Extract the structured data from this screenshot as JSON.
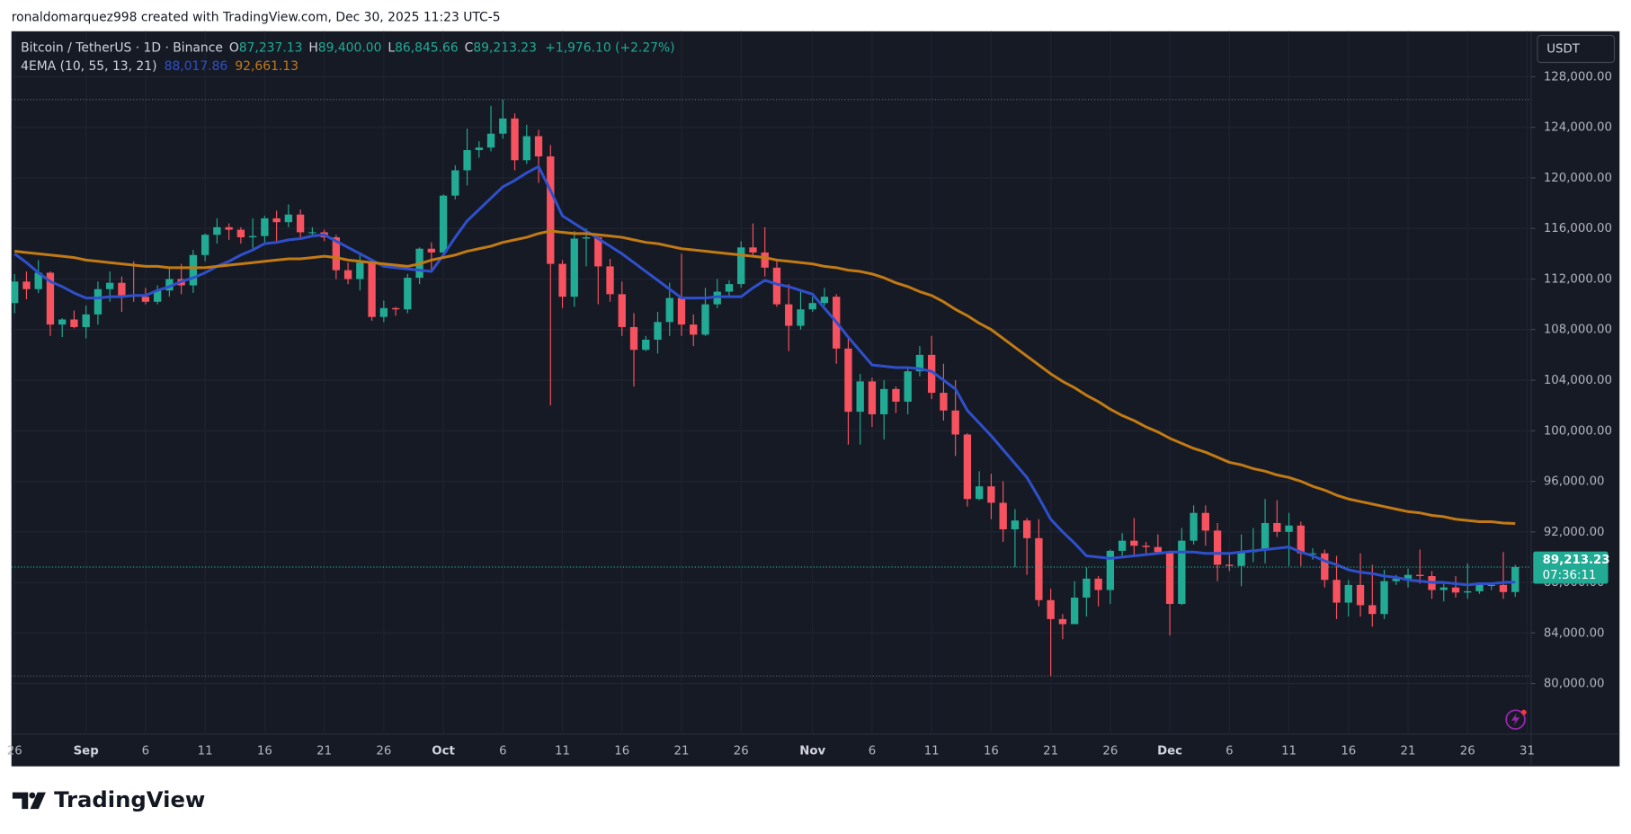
{
  "attribution": "ronaldomarquez998 created with TradingView.com, Dec 30, 2025 11:23 UTC-5",
  "brand": "TradingView",
  "chart_data": {
    "type": "candlestick",
    "symbol": "Bitcoin / TetherUS · 1D · Binance",
    "ohlc_letters": [
      "O",
      "H",
      "L",
      "C"
    ],
    "ohlc_labels": [
      "87,237.13",
      "89,400.00",
      "86,845.66",
      "89,213.23"
    ],
    "change_label": "+1,976.10 (+2.27%)",
    "indicator": "4EMA (10, 55, 13, 21)",
    "currency": "USDT",
    "countdown": "07:36:11",
    "up_color": "#22ab94",
    "down_color": "#f7525f",
    "grid": true,
    "categories": [
      "26",
      null,
      null,
      null,
      null,
      null,
      "Sep",
      null,
      null,
      null,
      null,
      "6",
      null,
      null,
      null,
      null,
      "11",
      null,
      null,
      null,
      null,
      "16",
      null,
      null,
      null,
      null,
      "21",
      null,
      null,
      null,
      null,
      "26",
      null,
      null,
      null,
      null,
      "Oct",
      null,
      null,
      null,
      null,
      "6",
      null,
      null,
      null,
      null,
      "11",
      null,
      null,
      null,
      null,
      "16",
      null,
      null,
      null,
      null,
      "21",
      null,
      null,
      null,
      null,
      "26",
      null,
      null,
      null,
      null,
      null,
      "Nov",
      null,
      null,
      null,
      null,
      "6",
      null,
      null,
      null,
      null,
      "11",
      null,
      null,
      null,
      null,
      "16",
      null,
      null,
      null,
      null,
      "21",
      null,
      null,
      null,
      null,
      "26",
      null,
      null,
      null,
      null,
      "Dec",
      null,
      null,
      null,
      null,
      "6",
      null,
      null,
      null,
      null,
      "11",
      null,
      null,
      null,
      null,
      "16",
      null,
      null,
      null,
      null,
      "21",
      null,
      null,
      null,
      null,
      "26",
      null,
      null,
      null,
      null,
      "31"
    ],
    "open": [
      110100,
      111800,
      111200,
      112500,
      108400,
      108800,
      108200,
      109200,
      111200,
      111700,
      110700,
      110600,
      110200,
      111100,
      112000,
      111500,
      113900,
      115500,
      116100,
      115900,
      115300,
      115400,
      116800,
      116500,
      117100,
      115700,
      115700,
      115300,
      112700,
      112000,
      113300,
      109000,
      109700,
      109600,
      112100,
      114400,
      114100,
      118600,
      120600,
      122200,
      122400,
      123500,
      124700,
      121400,
      123300,
      121700,
      113200,
      110600,
      115200,
      115300,
      113000,
      110800,
      108200,
      106400,
      107200,
      108600,
      110500,
      108400,
      107600,
      110000,
      111000,
      111600,
      114500,
      114100,
      112900,
      110000,
      108300,
      109600,
      110100,
      110600,
      106500,
      101500,
      103900,
      101300,
      103300,
      102300,
      104700,
      106000,
      103000,
      101600,
      99700,
      94600,
      95600,
      94300,
      92200,
      92900,
      91500,
      86600,
      85100,
      84700,
      86800,
      88300,
      87400,
      90500,
      91300,
      90900,
      90800,
      90400,
      86300,
      91300,
      93500,
      92100,
      89400,
      89300,
      90400,
      90600,
      92700,
      92000,
      92500,
      90300,
      90300,
      88200,
      86400,
      87800,
      86200,
      85500,
      88100,
      88300,
      88600,
      88500,
      87400,
      87600,
      87200,
      87300,
      87800,
      87800,
      87237.13,
      null
    ],
    "high": [
      112400,
      112600,
      113500,
      112600,
      108900,
      109500,
      109900,
      111800,
      112600,
      112200,
      113400,
      111300,
      111500,
      112900,
      113200,
      114300,
      115600,
      116800,
      116400,
      116100,
      116800,
      117000,
      117400,
      117900,
      117500,
      116100,
      115900,
      115500,
      113300,
      113900,
      113500,
      110300,
      109800,
      112400,
      114500,
      114900,
      118700,
      121000,
      123900,
      122900,
      125700,
      126200,
      125100,
      124200,
      123800,
      122600,
      113500,
      115800,
      116000,
      115400,
      113600,
      111800,
      109300,
      107500,
      109400,
      111700,
      114000,
      109200,
      111300,
      112000,
      111900,
      115000,
      116400,
      116100,
      113600,
      111600,
      111200,
      110600,
      111300,
      110800,
      107300,
      104500,
      104200,
      104000,
      103500,
      105000,
      106700,
      107500,
      105300,
      104000,
      99800,
      96800,
      96600,
      96000,
      93800,
      93100,
      93000,
      87500,
      85500,
      88100,
      89200,
      88500,
      90600,
      91900,
      93100,
      91200,
      91800,
      90400,
      92300,
      94100,
      94100,
      92700,
      90300,
      91800,
      92300,
      94600,
      94500,
      93500,
      92800,
      90700,
      90600,
      90100,
      88200,
      90300,
      89400,
      89000,
      88600,
      89100,
      90600,
      88900,
      87900,
      88500,
      89500,
      88000,
      88000,
      90400,
      89400,
      null
    ],
    "low": [
      109300,
      110400,
      110900,
      107500,
      107400,
      108100,
      107300,
      108400,
      110200,
      109400,
      110200,
      110000,
      110000,
      110600,
      110800,
      110900,
      113400,
      114800,
      115100,
      114800,
      114400,
      114900,
      114800,
      116100,
      115200,
      115400,
      115000,
      112000,
      111600,
      111100,
      108700,
      108600,
      109100,
      109300,
      111600,
      112700,
      113900,
      118300,
      119400,
      121600,
      122100,
      123100,
      120600,
      121100,
      119600,
      102000,
      109700,
      109800,
      113000,
      110000,
      110200,
      107500,
      103500,
      106300,
      106100,
      107500,
      107500,
      106700,
      107500,
      109700,
      110600,
      111300,
      113900,
      112200,
      109800,
      106300,
      108000,
      109400,
      109900,
      105300,
      98900,
      98900,
      100300,
      99300,
      101400,
      101300,
      104300,
      102500,
      100800,
      98000,
      94000,
      94500,
      93000,
      91200,
      89200,
      88600,
      86100,
      80600,
      83500,
      84700,
      85300,
      86100,
      86300,
      90100,
      90200,
      90300,
      90300,
      83800,
      86200,
      91000,
      90900,
      88100,
      88900,
      87700,
      89600,
      89500,
      91600,
      89300,
      89300,
      89800,
      87600,
      85100,
      85300,
      85300,
      84500,
      85100,
      87800,
      87600,
      87900,
      86700,
      86500,
      86800,
      86700,
      87100,
      87400,
      86700,
      86845.66,
      null
    ],
    "close": [
      111800,
      111200,
      112500,
      108400,
      108800,
      108200,
      109200,
      111200,
      111700,
      110700,
      110600,
      110200,
      111100,
      112000,
      111500,
      113900,
      115500,
      116100,
      115900,
      115300,
      115400,
      116800,
      116500,
      117100,
      115700,
      115700,
      115300,
      112700,
      112000,
      113300,
      109000,
      109700,
      109600,
      112100,
      114400,
      114100,
      118600,
      120600,
      122200,
      122400,
      123500,
      124700,
      121400,
      123300,
      121700,
      113200,
      110600,
      115200,
      115300,
      113000,
      110800,
      108200,
      106400,
      107200,
      108600,
      110500,
      108400,
      107600,
      110000,
      111000,
      111600,
      114500,
      114100,
      112900,
      110000,
      108300,
      109600,
      110100,
      110600,
      106500,
      101500,
      103900,
      101300,
      103300,
      102300,
      104700,
      106000,
      103000,
      101600,
      99700,
      94600,
      95600,
      94300,
      92200,
      92900,
      91500,
      86600,
      85100,
      84700,
      86800,
      88300,
      87400,
      90500,
      91300,
      90900,
      90800,
      90400,
      86300,
      91300,
      93500,
      92100,
      89400,
      89300,
      90400,
      90600,
      92700,
      92000,
      92500,
      90300,
      90300,
      88200,
      86400,
      87800,
      86200,
      85500,
      88100,
      88300,
      88600,
      88500,
      87400,
      87600,
      87200,
      87300,
      87800,
      87800,
      87237.13,
      89213.23,
      null
    ],
    "series": [
      {
        "color": "#2f50cc",
        "last_label": "88,017.86",
        "values": [
          114000,
          113300,
          112500,
          111800,
          111400,
          110900,
          110500,
          110500,
          110600,
          110600,
          110700,
          110700,
          111100,
          111400,
          111800,
          112100,
          112500,
          113000,
          113400,
          113900,
          114300,
          114800,
          114900,
          115100,
          115200,
          115400,
          115500,
          115000,
          114500,
          114000,
          113500,
          113000,
          112900,
          112800,
          112700,
          112600,
          113900,
          115300,
          116600,
          117500,
          118400,
          119300,
          119800,
          120400,
          120900,
          119000,
          117000,
          116400,
          115800,
          115200,
          114600,
          114000,
          113300,
          112600,
          111900,
          111200,
          110500,
          110500,
          110500,
          110600,
          110600,
          110600,
          111300,
          111900,
          111600,
          111400,
          111100,
          110800,
          109700,
          108600,
          107400,
          106300,
          105200,
          105100,
          105000,
          105000,
          104900,
          104700,
          104000,
          103300,
          101600,
          100600,
          99600,
          98500,
          97400,
          96300,
          94700,
          93000,
          92000,
          91100,
          90100,
          90000,
          89900,
          90000,
          90100,
          90200,
          90300,
          90400,
          90400,
          90400,
          90300,
          90300,
          90300,
          90400,
          90500,
          90600,
          90700,
          90800,
          90400,
          90100,
          89700,
          89400,
          89000,
          88800,
          88700,
          88500,
          88400,
          88200,
          88100,
          88000,
          88000,
          87900,
          87800,
          87900,
          87900,
          88000,
          88017.86,
          null
        ]
      },
      {
        "color": "#c27a14",
        "last_label": "92,661.13",
        "values": [
          114200,
          114100,
          114000,
          113900,
          113800,
          113700,
          113500,
          113400,
          113300,
          113200,
          113100,
          113000,
          113000,
          112900,
          112900,
          112900,
          112900,
          113000,
          113100,
          113200,
          113300,
          113400,
          113500,
          113600,
          113600,
          113700,
          113800,
          113700,
          113500,
          113400,
          113300,
          113200,
          113100,
          113000,
          113200,
          113500,
          113700,
          113900,
          114200,
          114400,
          114600,
          114900,
          115100,
          115300,
          115600,
          115800,
          115700,
          115600,
          115600,
          115500,
          115400,
          115300,
          115100,
          114900,
          114800,
          114600,
          114400,
          114300,
          114200,
          114100,
          114000,
          113900,
          113800,
          113700,
          113500,
          113400,
          113300,
          113200,
          113000,
          112900,
          112700,
          112600,
          112400,
          112100,
          111700,
          111400,
          111000,
          110700,
          110200,
          109600,
          109100,
          108500,
          108000,
          107300,
          106600,
          105900,
          105200,
          104500,
          103900,
          103400,
          102800,
          102300,
          101700,
          101200,
          100800,
          100300,
          99900,
          99400,
          99000,
          98600,
          98300,
          97900,
          97500,
          97300,
          97000,
          96800,
          96500,
          96300,
          96000,
          95600,
          95300,
          94900,
          94600,
          94400,
          94200,
          94000,
          93800,
          93600,
          93500,
          93300,
          93200,
          93000,
          92900,
          92800,
          92800,
          92700,
          92661.13,
          null
        ]
      }
    ],
    "ylim": [
      76000,
      131600
    ],
    "yticks": [
      {
        "value": 80000,
        "label": "80,000.00"
      },
      {
        "value": 84000,
        "label": "84,000.00"
      },
      {
        "value": 88000,
        "label": "88,000.00"
      },
      {
        "value": 92000,
        "label": "92,000.00"
      },
      {
        "value": 96000,
        "label": "96,000.00"
      },
      {
        "value": 100000,
        "label": "100,000.00"
      },
      {
        "value": 104000,
        "label": "104,000.00"
      },
      {
        "value": 108000,
        "label": "108,000.00"
      },
      {
        "value": 112000,
        "label": "112,000.00"
      },
      {
        "value": 116000,
        "label": "116,000.00"
      },
      {
        "value": 120000,
        "label": "120,000.00"
      },
      {
        "value": 124000,
        "label": "124,000.00"
      },
      {
        "value": 128000,
        "label": "128,000.00"
      }
    ]
  }
}
